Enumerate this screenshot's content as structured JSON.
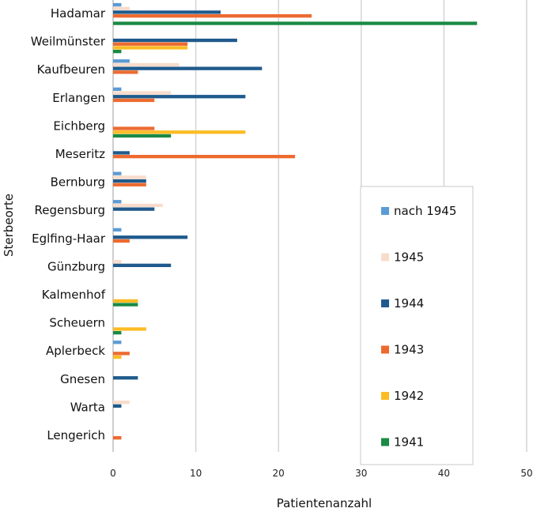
{
  "chart_data": {
    "type": "bar",
    "orientation": "horizontal",
    "title": "",
    "xlabel": "Patientenanzahl",
    "ylabel": "Sterbeorte",
    "xlim": [
      0,
      50
    ],
    "xticks": [
      0,
      10,
      20,
      30,
      40,
      50
    ],
    "grid": true,
    "legend_position": "right",
    "categories": [
      "Hadamar",
      "Weilmünster",
      "Kaufbeuren",
      "Erlangen",
      "Eichberg",
      "Meseritz",
      "Bernburg",
      "Regensburg",
      "Eglfing-Haar",
      "Günzburg",
      "Kalmenhof",
      "Scheuern",
      "Aplerbeck",
      "Gnesen",
      "Warta",
      "Lengerich"
    ],
    "series": [
      {
        "name": "nach 1945",
        "color": "#5b9bd5",
        "values": [
          1,
          0,
          2,
          1,
          0,
          0,
          1,
          1,
          1,
          0,
          0,
          0,
          1,
          0,
          0,
          0
        ]
      },
      {
        "name": "1945",
        "color": "#f8dccb",
        "values": [
          2,
          0,
          8,
          7,
          0,
          0,
          4,
          6,
          0,
          1,
          0,
          0,
          0,
          0,
          2,
          0
        ]
      },
      {
        "name": "1944",
        "color": "#1f5a8c",
        "values": [
          13,
          15,
          18,
          16,
          0,
          2,
          4,
          5,
          9,
          7,
          0,
          0,
          0,
          3,
          1,
          0
        ]
      },
      {
        "name": "1943",
        "color": "#ed6a2f",
        "values": [
          24,
          9,
          3,
          5,
          5,
          22,
          4,
          0,
          2,
          0,
          0,
          0,
          2,
          0,
          0,
          1
        ]
      },
      {
        "name": "1942",
        "color": "#fbbc24",
        "values": [
          0,
          9,
          0,
          0,
          16,
          0,
          0,
          0,
          0,
          0,
          3,
          4,
          1,
          0,
          0,
          0
        ]
      },
      {
        "name": "1941",
        "color": "#1a8a44",
        "values": [
          44,
          1,
          0,
          0,
          7,
          0,
          0,
          0,
          0,
          0,
          3,
          1,
          0,
          0,
          0,
          0
        ]
      }
    ]
  }
}
